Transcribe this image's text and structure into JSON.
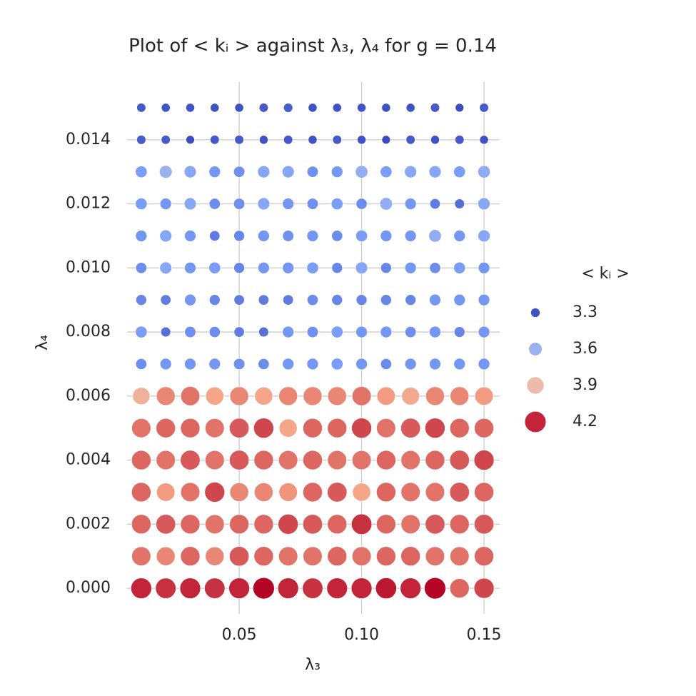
{
  "chart_data": {
    "type": "scatter",
    "title": "Plot of < kᵢ > against λ₃, λ₄ for g = 0.14",
    "x_label": "λ₃",
    "y_label": "λ₄",
    "x": [
      0.01,
      0.02,
      0.03,
      0.04,
      0.05,
      0.06,
      0.07,
      0.08,
      0.09,
      0.1,
      0.11,
      0.12,
      0.13,
      0.14,
      0.15
    ],
    "y": [
      0,
      0.001,
      0.002,
      0.003,
      0.004,
      0.005,
      0.006,
      0.007,
      0.008,
      0.009,
      0.01,
      0.011,
      0.012,
      0.013,
      0.014,
      0.015
    ],
    "values": [
      [
        4.2,
        4.18,
        4.2,
        4.18,
        4.2,
        4.25,
        4.2,
        4.18,
        4.2,
        4.2,
        4.22,
        4.2,
        4.25,
        4.1,
        4.15
      ],
      [
        4.08,
        4.05,
        4.1,
        4.05,
        4.12,
        4.1,
        4.08,
        4.08,
        4.1,
        4.08,
        4.1,
        4.1,
        4.08,
        4.08,
        4.1
      ],
      [
        4.1,
        4.12,
        4.1,
        4.08,
        4.1,
        4.1,
        4.15,
        4.12,
        4.1,
        4.18,
        4.1,
        4.08,
        4.12,
        4.1,
        4.12
      ],
      [
        4.1,
        4.02,
        4.08,
        4.15,
        4.05,
        4.05,
        4.03,
        4.1,
        4.12,
        4.0,
        4.1,
        4.08,
        4.08,
        4.12,
        4.1
      ],
      [
        4.1,
        4.08,
        4.12,
        4.08,
        4.12,
        4.1,
        4.08,
        4.1,
        4.08,
        4.08,
        4.1,
        4.08,
        4.1,
        4.12,
        4.15
      ],
      [
        4.08,
        4.1,
        4.1,
        4.08,
        4.12,
        4.15,
        4.0,
        4.1,
        4.1,
        4.15,
        4.08,
        4.12,
        4.15,
        4.1,
        4.1
      ],
      [
        3.95,
        4.05,
        4.08,
        4.0,
        4.05,
        4.0,
        4.05,
        4.05,
        4.05,
        4.08,
        4.02,
        3.98,
        4.05,
        4.05,
        4.02
      ],
      [
        3.47,
        3.5,
        3.5,
        3.5,
        3.48,
        3.47,
        3.5,
        3.5,
        3.52,
        3.5,
        3.47,
        3.5,
        3.5,
        3.5,
        3.5
      ],
      [
        3.52,
        3.38,
        3.48,
        3.47,
        3.42,
        3.38,
        3.5,
        3.48,
        3.52,
        3.5,
        3.5,
        3.48,
        3.5,
        3.45,
        3.5
      ],
      [
        3.45,
        3.42,
        3.5,
        3.45,
        3.42,
        3.42,
        3.42,
        3.47,
        3.45,
        3.45,
        3.45,
        3.45,
        3.5,
        3.5,
        3.5
      ],
      [
        3.47,
        3.55,
        3.5,
        3.52,
        3.45,
        3.5,
        3.5,
        3.52,
        3.45,
        3.55,
        3.45,
        3.5,
        3.47,
        3.52,
        3.5
      ],
      [
        3.5,
        3.55,
        3.5,
        3.42,
        3.45,
        3.5,
        3.48,
        3.5,
        3.47,
        3.52,
        3.5,
        3.5,
        3.58,
        3.5,
        3.55
      ],
      [
        3.52,
        3.5,
        3.55,
        3.47,
        3.48,
        3.55,
        3.5,
        3.48,
        3.52,
        3.47,
        3.58,
        3.5,
        3.42,
        3.38,
        3.55
      ],
      [
        3.52,
        3.6,
        3.55,
        3.5,
        3.48,
        3.55,
        3.55,
        3.48,
        3.5,
        3.58,
        3.52,
        3.55,
        3.55,
        3.52,
        3.57
      ],
      [
        3.33,
        3.32,
        3.28,
        3.32,
        3.32,
        3.3,
        3.32,
        3.3,
        3.32,
        3.3,
        3.28,
        3.32,
        3.3,
        3.32,
        3.3
      ],
      [
        3.32,
        3.3,
        3.3,
        3.3,
        3.3,
        3.32,
        3.33,
        3.3,
        3.3,
        3.3,
        3.3,
        3.3,
        3.32,
        3.28,
        3.32
      ]
    ],
    "colormap": "coolwarm",
    "xlim": [
      0.0042,
      0.1564
    ],
    "ylim": [
      -0.0008,
      0.0158
    ],
    "xticks": [
      {
        "value": 0.05,
        "label": "0.05"
      },
      {
        "value": 0.1,
        "label": "0.10"
      },
      {
        "value": 0.15,
        "label": "0.15"
      }
    ],
    "yticks": [
      {
        "value": 0,
        "label": "0.000"
      },
      {
        "value": 0.002,
        "label": "0.002"
      },
      {
        "value": 0.004,
        "label": "0.004"
      },
      {
        "value": 0.006,
        "label": "0.006"
      },
      {
        "value": 0.008,
        "label": "0.008"
      },
      {
        "value": 0.01,
        "label": "0.010"
      },
      {
        "value": 0.012,
        "label": "0.012"
      },
      {
        "value": 0.014,
        "label": "0.014"
      }
    ],
    "grid": true,
    "legend": {
      "title": "< kᵢ >",
      "values": [
        3.3,
        3.6,
        3.9,
        4.2
      ]
    }
  }
}
